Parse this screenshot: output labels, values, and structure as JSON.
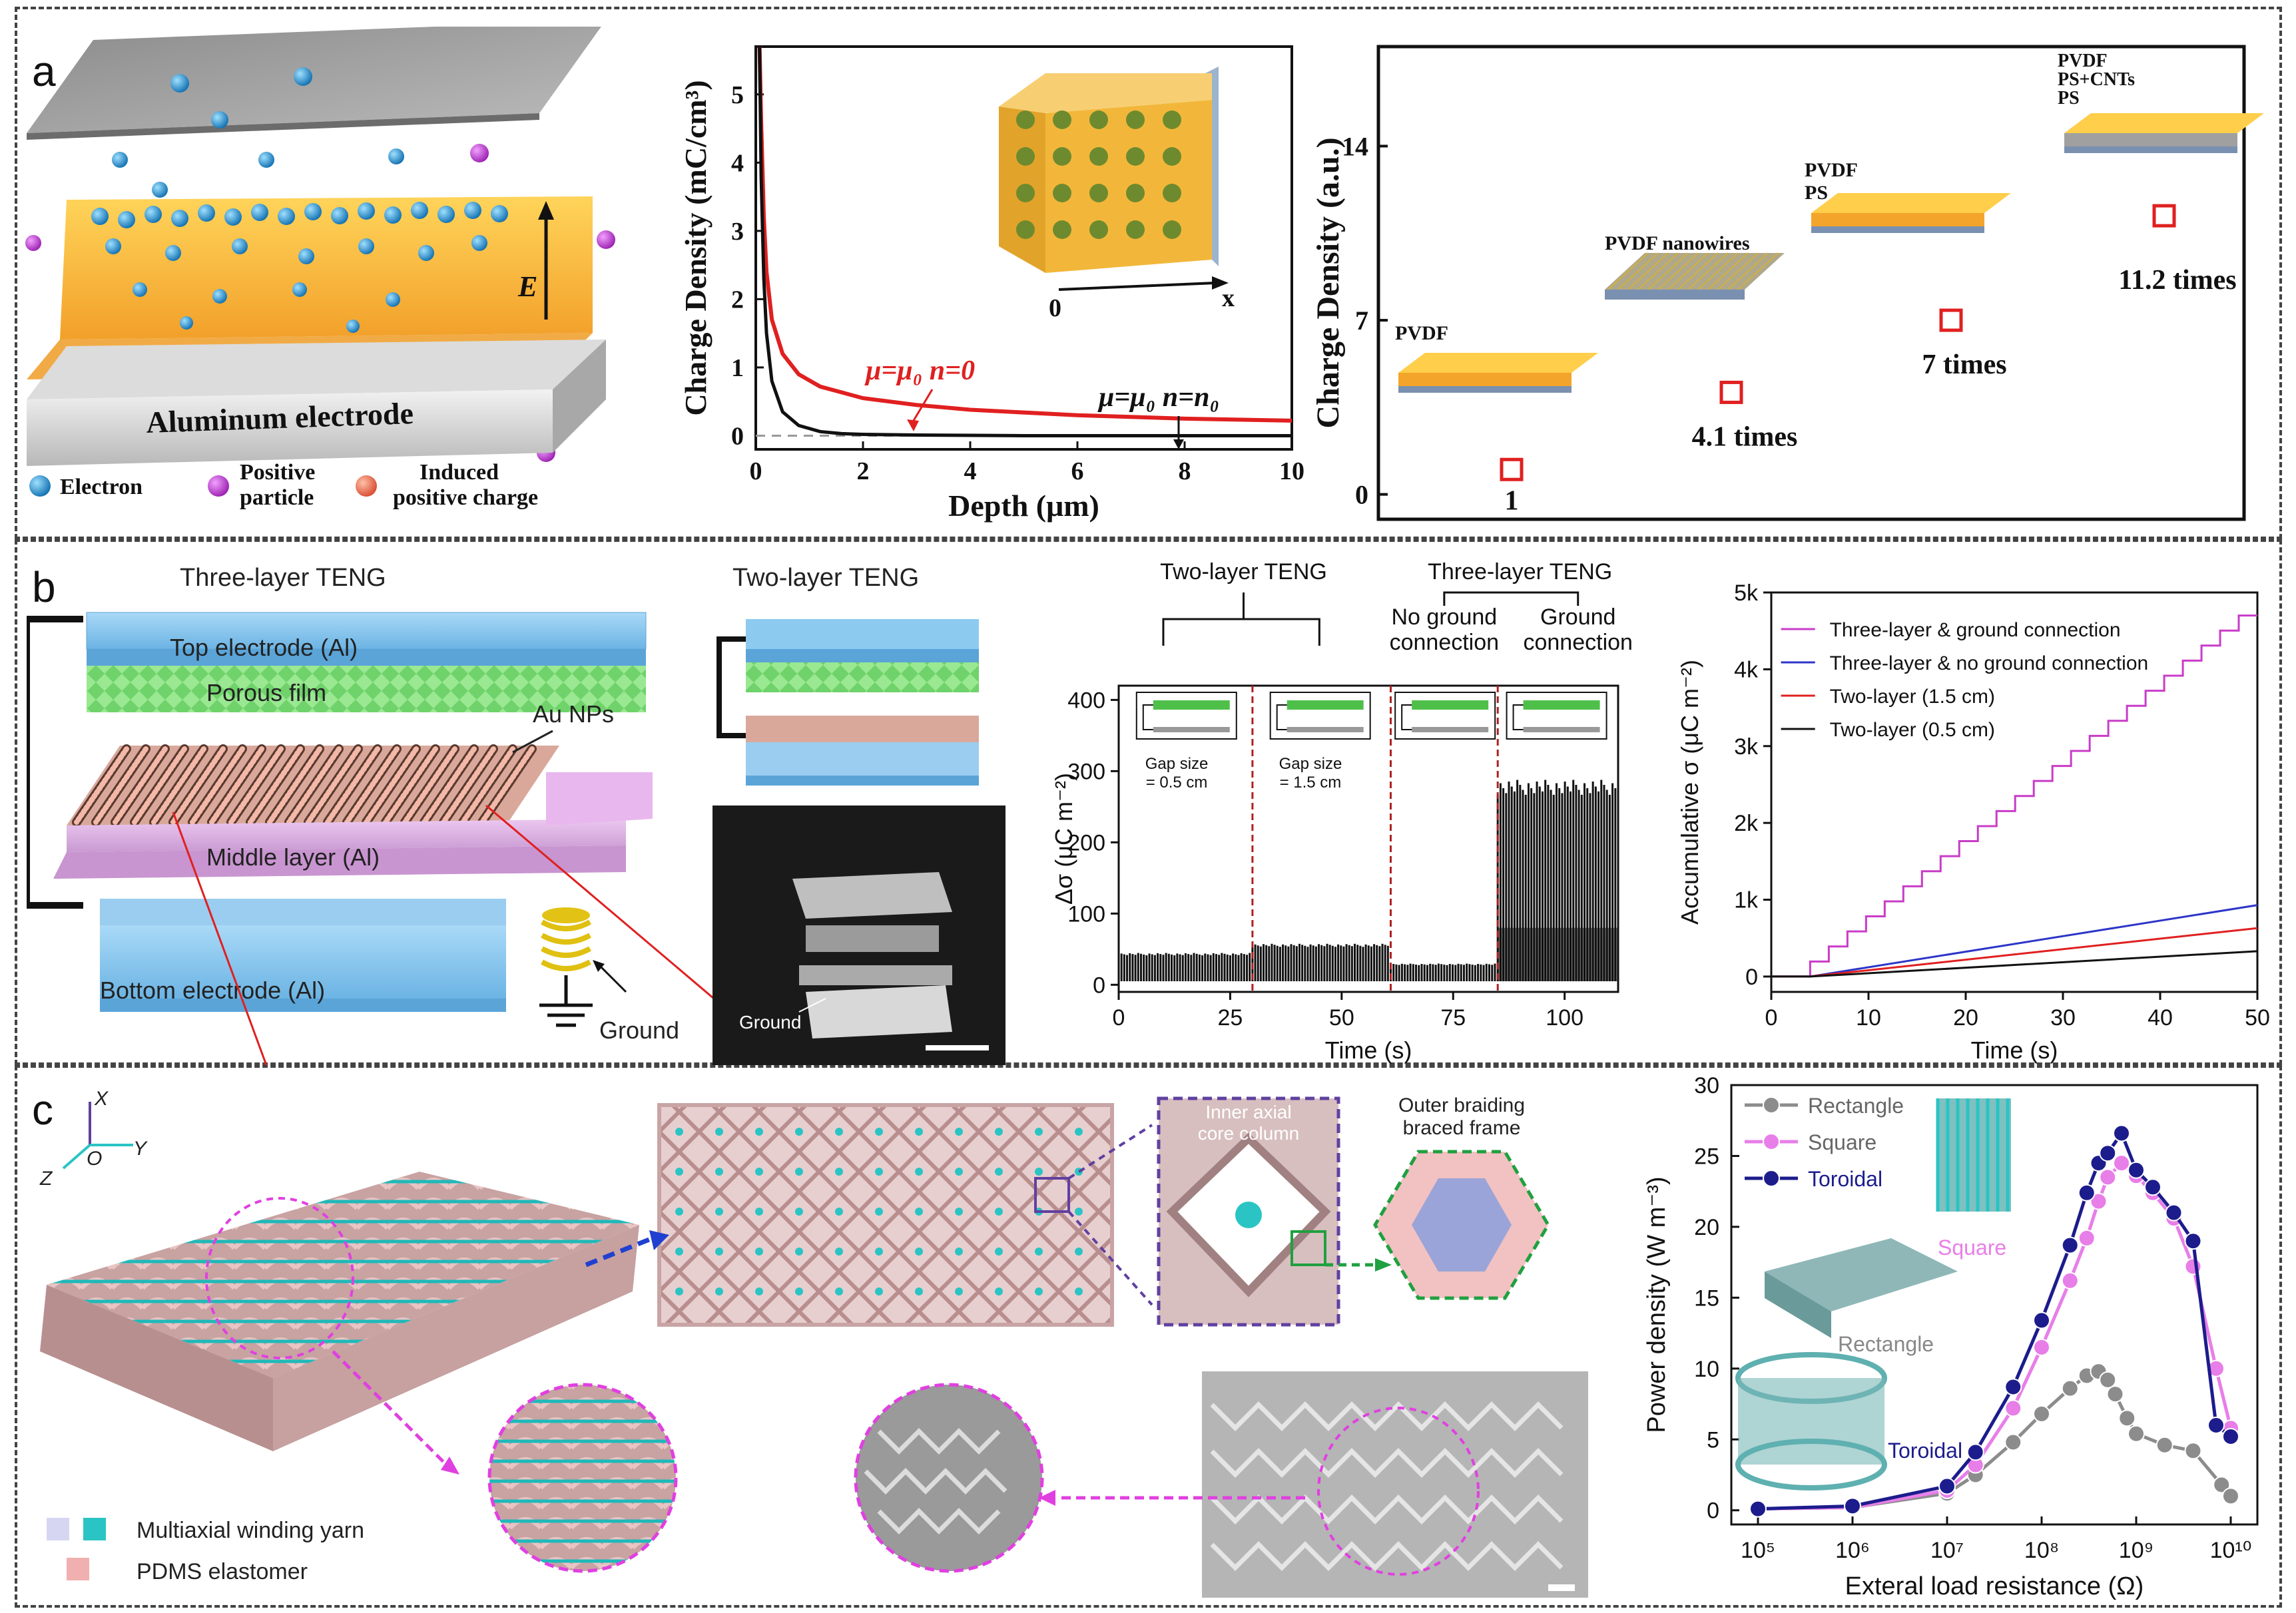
{
  "panels": {
    "a": "a",
    "b": "b",
    "c": "c"
  },
  "a": {
    "schematic": {
      "electrode_label": "Aluminum electrode",
      "field_label": "E",
      "legend": [
        {
          "label": "Electron",
          "color": "#1e88c8"
        },
        {
          "label": "Positive\nparticle",
          "color": "#b02cc8"
        },
        {
          "label": "Induced\npositive charge",
          "color": "#d8302a"
        }
      ]
    },
    "inset_axis": {
      "origin": "0",
      "axis": "x"
    },
    "annot": {
      "red": "μ=μ₀  n=0",
      "black": "μ=μ₀   n=n₀"
    }
  },
  "b": {
    "three_layer_title": "Three-layer TENG",
    "two_layer_title": "Two-layer TENG",
    "labels": {
      "top": "Top electrode (Al)",
      "porous": "Porous film",
      "au": "Au NPs",
      "middle": "Middle layer (Al)",
      "bottom": "Bottom electrode (Al)",
      "ground": "Ground",
      "photo_ground": "Ground"
    },
    "gap1": "Gap size\n= 0.5 cm",
    "gap2": "Gap size\n= 1.5 cm",
    "top_brackets": {
      "two": "Two-layer TENG",
      "three": "Three-layer TENG",
      "no_ground": "No ground\nconnection",
      "ground": "Ground\nconnection"
    }
  },
  "c": {
    "axes": {
      "x": "X",
      "y": "Y",
      "z": "Z",
      "o": "O"
    },
    "inner_label": "Inner axial\ncore column",
    "outer_label": "Outer braiding\nbraced frame",
    "legend": [
      {
        "label": "Multiaxial winding yarn",
        "color": "#2bc4c4"
      },
      {
        "label": "PDMS elastomer",
        "color": "#f0b0b0"
      }
    ],
    "inset_labels": {
      "square": "Square",
      "rectangle": "Rectangle",
      "toroidal": "Toroidal"
    }
  },
  "chart_data": [
    {
      "type": "line",
      "xlabel": "Depth (μm)",
      "ylabel": "Charge Density (mC/cm³)",
      "xlim": [
        0,
        10
      ],
      "ylim": [
        -0.2,
        5.7
      ],
      "xticks": [
        0,
        2,
        4,
        6,
        8,
        10
      ],
      "yticks": [
        0,
        1,
        2,
        3,
        4,
        5
      ],
      "series": [
        {
          "name": "μ=μ₀ n=0",
          "color": "#e02020",
          "x": [
            0.07,
            0.1,
            0.15,
            0.2,
            0.3,
            0.5,
            0.8,
            1.2,
            2,
            3,
            4,
            6,
            8,
            10
          ],
          "y": [
            5.7,
            4.6,
            3.2,
            2.4,
            1.7,
            1.2,
            0.9,
            0.72,
            0.55,
            0.45,
            0.38,
            0.3,
            0.25,
            0.22
          ]
        },
        {
          "name": "μ=μ₀ n=n₀",
          "color": "#111111",
          "x": [
            0.07,
            0.1,
            0.15,
            0.2,
            0.3,
            0.5,
            0.8,
            1.2,
            1.6,
            2,
            3,
            5,
            10
          ],
          "y": [
            5.7,
            3.8,
            2.3,
            1.5,
            0.8,
            0.35,
            0.15,
            0.06,
            0.03,
            0.02,
            0.01,
            0.0,
            0.0
          ]
        }
      ]
    },
    {
      "type": "scatter",
      "ylabel": "Charge Density (a.u.)",
      "ylim": [
        -1,
        18
      ],
      "yticks": [
        0,
        7,
        14
      ],
      "points": [
        {
          "y": 1,
          "caption": "1",
          "label": "PVDF"
        },
        {
          "y": 4.1,
          "caption": "4.1 times",
          "label": "PVDF  nanowires"
        },
        {
          "y": 7,
          "caption": "7 times",
          "label": "PVDF\nPS"
        },
        {
          "y": 11.2,
          "caption": "11.2 times",
          "label": "PVDF\nPS+CNTs\nPS"
        }
      ]
    },
    {
      "type": "line",
      "xlabel": "Time (s)",
      "ylabel": "Δσ (μC m⁻²)",
      "xlim": [
        0,
        112
      ],
      "ylim": [
        -10,
        420
      ],
      "xticks": [
        0,
        25,
        50,
        75,
        100
      ],
      "yticks": [
        0,
        100,
        200,
        300,
        400
      ],
      "segments": [
        {
          "x_range": [
            0,
            30
          ],
          "base": 5,
          "peak": 45
        },
        {
          "x_range": [
            30,
            61
          ],
          "base": 5,
          "peak": 58
        },
        {
          "x_range": [
            61,
            85
          ],
          "base": 5,
          "peak": 30
        },
        {
          "x_range": [
            85,
            112
          ],
          "base": 5,
          "peak": 290
        }
      ],
      "dividers": [
        30,
        61,
        85
      ]
    },
    {
      "type": "line",
      "xlabel": "Time (s)",
      "ylabel": "Accumulative σ (μC m⁻²)",
      "xlim": [
        0,
        50
      ],
      "ylim": [
        -200,
        5000
      ],
      "xticks": [
        0,
        10,
        20,
        30,
        40,
        50
      ],
      "yticks": [
        0,
        1000,
        2000,
        3000,
        4000,
        5000
      ],
      "ytick_labels": [
        "0",
        "1k",
        "2k",
        "3k",
        "4k",
        "5k"
      ],
      "series": [
        {
          "name": "Three-layer & ground connection",
          "color": "#c83cc8",
          "start": 4,
          "end_value": 4700,
          "step": true
        },
        {
          "name": "Three-layer & no ground connection",
          "color": "#2d35c8",
          "start": 4,
          "end_value": 930
        },
        {
          "name": "Two-layer (1.5 cm)",
          "color": "#e02020",
          "start": 4,
          "end_value": 630
        },
        {
          "name": "Two-layer (0.5 cm)",
          "color": "#111111",
          "start": 4,
          "end_value": 330
        }
      ]
    },
    {
      "type": "line",
      "xlabel": "Exteral load resistance (Ω)",
      "ylabel": "Power density (W m⁻³)",
      "x_scale": "log",
      "xlim": [
        100000.0,
        10000000000.0
      ],
      "ylim": [
        -1,
        30
      ],
      "xticks": [
        100000,
        1000000,
        10000000,
        100000000,
        1000000000,
        10000000000
      ],
      "xtick_labels": [
        "10⁵",
        "10⁶",
        "10⁷",
        "10⁸",
        "10⁹",
        "10¹⁰"
      ],
      "yticks": [
        0,
        5,
        10,
        15,
        20,
        25,
        30
      ],
      "series": [
        {
          "name": "Rectangle",
          "color": "#8c8c8c",
          "x": [
            100000,
            1000000,
            10000000,
            20000000,
            50000000,
            100000000,
            200000000,
            300000000,
            400000000,
            500000000,
            600000000,
            800000000,
            1000000000,
            2000000000,
            4000000000,
            8000000000,
            10000000000
          ],
          "y": [
            0.1,
            0.2,
            1.2,
            2.5,
            4.8,
            6.8,
            8.6,
            9.5,
            9.8,
            9.2,
            8.2,
            6.5,
            5.4,
            4.6,
            4.2,
            1.8,
            1.0
          ]
        },
        {
          "name": "Square",
          "color": "#e87ee8",
          "x": [
            100000,
            1000000,
            10000000,
            20000000,
            50000000,
            100000000,
            200000000,
            300000000,
            400000000,
            500000000,
            700000000,
            1000000000,
            1500000000,
            2500000000,
            4000000000,
            7000000000,
            10000000000
          ],
          "y": [
            0.1,
            0.2,
            1.4,
            3.2,
            7.2,
            11.5,
            16.2,
            19.2,
            21.8,
            23.5,
            24.5,
            23.6,
            22.4,
            20.6,
            17.2,
            10.0,
            5.8
          ]
        },
        {
          "name": "Toroidal",
          "color": "#1c1c8c",
          "x": [
            100000,
            1000000,
            10000000,
            20000000,
            50000000,
            100000000,
            200000000,
            300000000,
            400000000,
            500000000,
            700000000,
            1000000000,
            1500000000,
            2500000000,
            4000000000,
            7000000000,
            10000000000
          ],
          "y": [
            0.1,
            0.3,
            1.7,
            4.1,
            8.7,
            13.4,
            18.7,
            22.4,
            24.5,
            25.2,
            26.6,
            24.0,
            22.8,
            21.0,
            19.0,
            6.0,
            5.2
          ]
        }
      ]
    }
  ]
}
